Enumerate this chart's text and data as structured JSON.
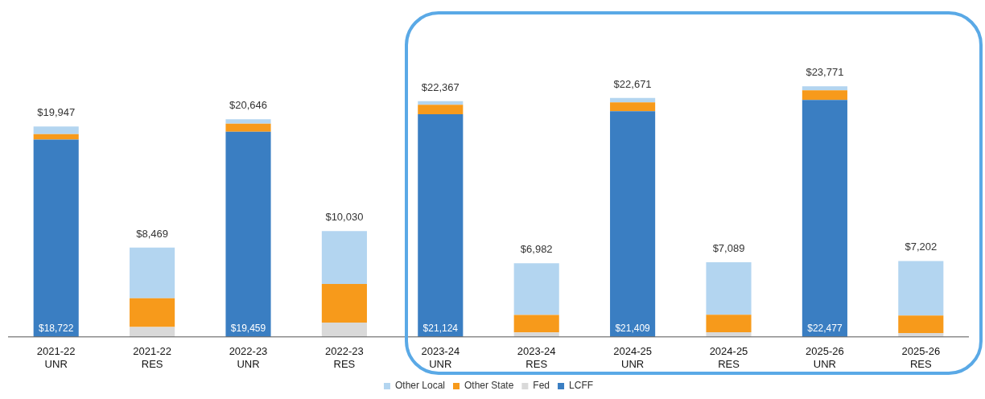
{
  "chart_data": {
    "type": "bar",
    "stacked": true,
    "legend": "bottom",
    "tick_labels": "x",
    "categories": [
      "2021-22 UNR",
      "2021-22 RES",
      "2022-23 UNR",
      "2022-23 RES",
      "2023-24 UNR",
      "2023-24 RES",
      "2024-25 UNR",
      "2024-25 RES",
      "2025-26 UNR",
      "2025-26 RES"
    ],
    "series": [
      {
        "name": "LCFF",
        "color": "#3a7ec2",
        "values": [
          18722,
          0,
          19459,
          0,
          21124,
          0,
          21409,
          0,
          22477,
          0
        ],
        "value_labels": [
          "$18,722",
          null,
          "$19,459",
          null,
          "$21,124",
          null,
          "$21,409",
          null,
          "$22,477",
          null
        ]
      },
      {
        "name": "Fed",
        "color": "#d9d9d9",
        "values": [
          0,
          940,
          0,
          1360,
          0,
          420,
          0,
          440,
          0,
          360
        ]
      },
      {
        "name": "Other State",
        "color": "#f79a1b",
        "values": [
          500,
          2720,
          767,
          3660,
          890,
          1670,
          830,
          1660,
          910,
          1660
        ]
      },
      {
        "name": "Other Local",
        "color": "#b3d5f0",
        "values": [
          725,
          4809,
          420,
          5010,
          353,
          4892,
          432,
          4989,
          384,
          5182
        ]
      }
    ],
    "totals": [
      "$19,947",
      "$8,469",
      "$20,646",
      "$10,030",
      "$22,367",
      "$6,982",
      "$22,671",
      "$7,089",
      "$23,771",
      "$7,202"
    ]
  }
}
